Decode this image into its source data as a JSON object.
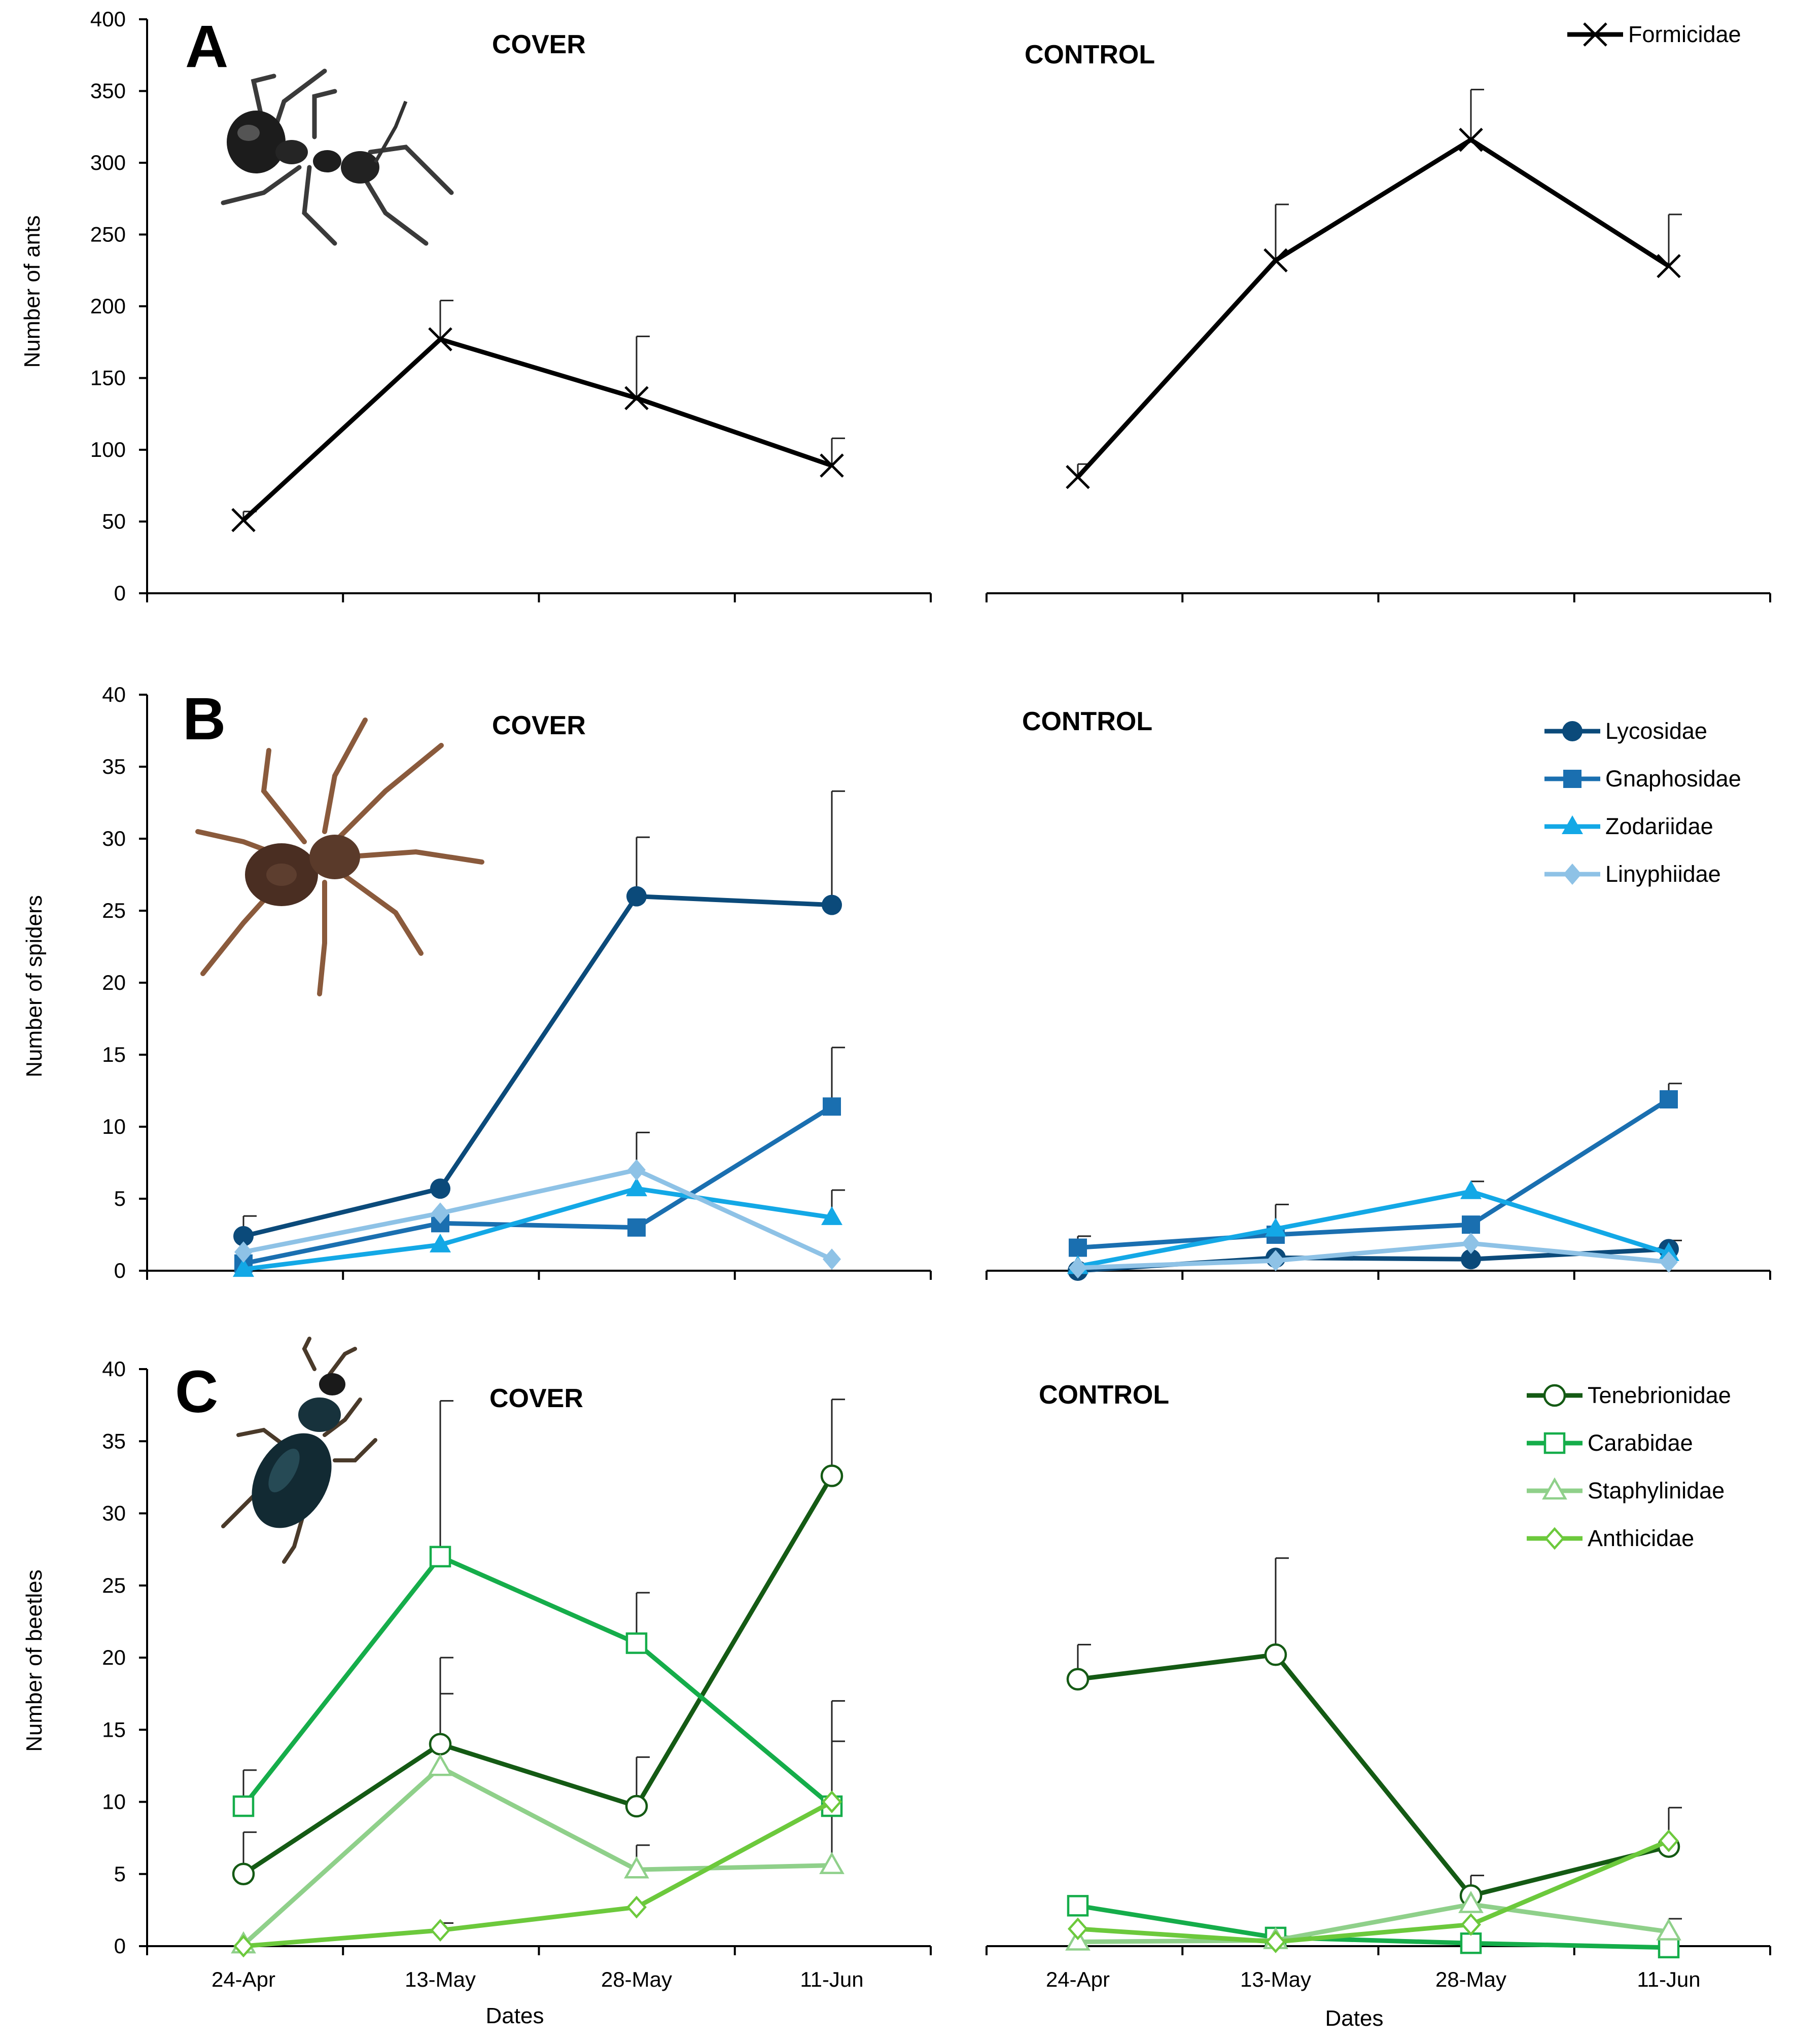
{
  "chart_data": [
    {
      "id": "A",
      "type": "line",
      "panel_label": "A",
      "ylabel": "Number of ants",
      "ylim": [
        0,
        400
      ],
      "yticks": [
        0,
        50,
        100,
        150,
        200,
        250,
        300,
        350,
        400
      ],
      "categories": [
        "24-Apr",
        "13-May",
        "28-May",
        "11-Jun"
      ],
      "xlabel": "",
      "show_xticklabels": false,
      "legend_position": "top-right",
      "subplots": [
        {
          "title": "COVER",
          "series": [
            {
              "name": "Formicidae",
              "color": "#000000",
              "marker": "x",
              "values": [
                51,
                177,
                136,
                89
              ],
              "errors": [
                6,
                27,
                43,
                19
              ]
            }
          ]
        },
        {
          "title": "CONTROL",
          "series": [
            {
              "name": "Formicidae",
              "color": "#000000",
              "marker": "x",
              "values": [
                81,
                232,
                316,
                228
              ],
              "errors": [
                9,
                39,
                35,
                36
              ]
            }
          ]
        }
      ]
    },
    {
      "id": "B",
      "type": "line",
      "panel_label": "B",
      "ylabel": "Number of spiders",
      "ylim": [
        0,
        40
      ],
      "yticks": [
        0,
        5,
        10,
        15,
        20,
        25,
        30,
        35,
        40
      ],
      "categories": [
        "24-Apr",
        "13-May",
        "28-May",
        "11-Jun"
      ],
      "xlabel": "",
      "show_xticklabels": false,
      "legend_position": "top-right",
      "subplots": [
        {
          "title": "COVER",
          "series": [
            {
              "name": "Lycosidae",
              "color": "#0b4a7a",
              "marker": "circle",
              "values": [
                2.4,
                5.7,
                26.0,
                25.4
              ],
              "errors": [
                1.4,
                0,
                4.1,
                7.9
              ]
            },
            {
              "name": "Gnaphosidae",
              "color": "#1a6fb0",
              "marker": "square",
              "values": [
                0.5,
                3.3,
                3.0,
                11.4
              ],
              "errors": [
                0,
                0,
                0,
                4.1
              ]
            },
            {
              "name": "Zodariidae",
              "color": "#13a8e6",
              "marker": "triangle",
              "values": [
                0.1,
                1.8,
                5.7,
                3.7
              ],
              "errors": [
                0,
                0,
                0,
                1.9
              ]
            },
            {
              "name": "Linyphiidae",
              "color": "#8ec2e6",
              "marker": "diamond",
              "values": [
                1.3,
                4.0,
                7.0,
                0.8
              ],
              "errors": [
                0,
                0,
                2.6,
                0
              ]
            }
          ]
        },
        {
          "title": "CONTROL",
          "series": [
            {
              "name": "Lycosidae",
              "color": "#0b4a7a",
              "marker": "circle",
              "values": [
                0.0,
                0.9,
                0.8,
                1.5
              ],
              "errors": [
                0,
                0,
                0,
                0.6
              ]
            },
            {
              "name": "Gnaphosidae",
              "color": "#1a6fb0",
              "marker": "square",
              "values": [
                1.6,
                2.5,
                3.2,
                11.9
              ],
              "errors": [
                0.8,
                2.1,
                0,
                1.1
              ]
            },
            {
              "name": "Zodariidae",
              "color": "#13a8e6",
              "marker": "triangle",
              "values": [
                0.3,
                2.9,
                5.5,
                1.2
              ],
              "errors": [
                0,
                0,
                0.7,
                0
              ]
            },
            {
              "name": "Linyphiidae",
              "color": "#8ec2e6",
              "marker": "diamond",
              "values": [
                0.2,
                0.7,
                1.9,
                0.6
              ],
              "errors": [
                0,
                0,
                0,
                0
              ]
            }
          ]
        }
      ]
    },
    {
      "id": "C",
      "type": "line",
      "panel_label": "C",
      "ylabel": "Number of beetles",
      "ylim": [
        0,
        40
      ],
      "yticks": [
        0,
        5,
        10,
        15,
        20,
        25,
        30,
        35,
        40
      ],
      "categories": [
        "24-Apr",
        "13-May",
        "28-May",
        "11-Jun"
      ],
      "xlabel": "Dates",
      "show_xticklabels": true,
      "legend_position": "top-right",
      "subplots": [
        {
          "title": "COVER",
          "series": [
            {
              "name": "Tenebrionidae",
              "color": "#145a14",
              "marker": "circle-open",
              "values": [
                5.0,
                14.0,
                9.7,
                32.6
              ],
              "errors": [
                2.9,
                6.0,
                3.4,
                5.3
              ]
            },
            {
              "name": "Carabidae",
              "color": "#15ad4a",
              "marker": "square-open",
              "values": [
                9.7,
                27.0,
                21.0,
                9.7
              ],
              "errors": [
                2.5,
                10.8,
                3.5,
                7.3
              ]
            },
            {
              "name": "Staphylinidae",
              "color": "#8fd08a",
              "marker": "triangle-open",
              "values": [
                0.1,
                12.4,
                5.3,
                5.6
              ],
              "errors": [
                0,
                5.1,
                1.7,
                8.6
              ]
            },
            {
              "name": "Anthicidae",
              "color": "#6cc93c",
              "marker": "diamond-open",
              "values": [
                0.0,
                1.1,
                2.7,
                10.0
              ],
              "errors": [
                0,
                0.5,
                0,
                0
              ]
            }
          ]
        },
        {
          "title": "CONTROL",
          "series": [
            {
              "name": "Tenebrionidae",
              "color": "#145a14",
              "marker": "circle-open",
              "values": [
                18.5,
                20.2,
                3.5,
                6.9
              ],
              "errors": [
                2.4,
                6.7,
                1.4,
                2.7
              ]
            },
            {
              "name": "Carabidae",
              "color": "#15ad4a",
              "marker": "square-open",
              "values": [
                2.8,
                0.6,
                0.2,
                -0.1
              ],
              "errors": [
                0,
                0,
                0,
                2.0
              ]
            },
            {
              "name": "Staphylinidae",
              "color": "#8fd08a",
              "marker": "triangle-open",
              "values": [
                0.3,
                0.4,
                2.9,
                1.0
              ],
              "errors": [
                0,
                0,
                0,
                0
              ]
            },
            {
              "name": "Anthicidae",
              "color": "#6cc93c",
              "marker": "diamond-open",
              "values": [
                1.2,
                0.3,
                1.5,
                7.3
              ],
              "errors": [
                0,
                0,
                0,
                0
              ]
            }
          ]
        }
      ]
    }
  ]
}
